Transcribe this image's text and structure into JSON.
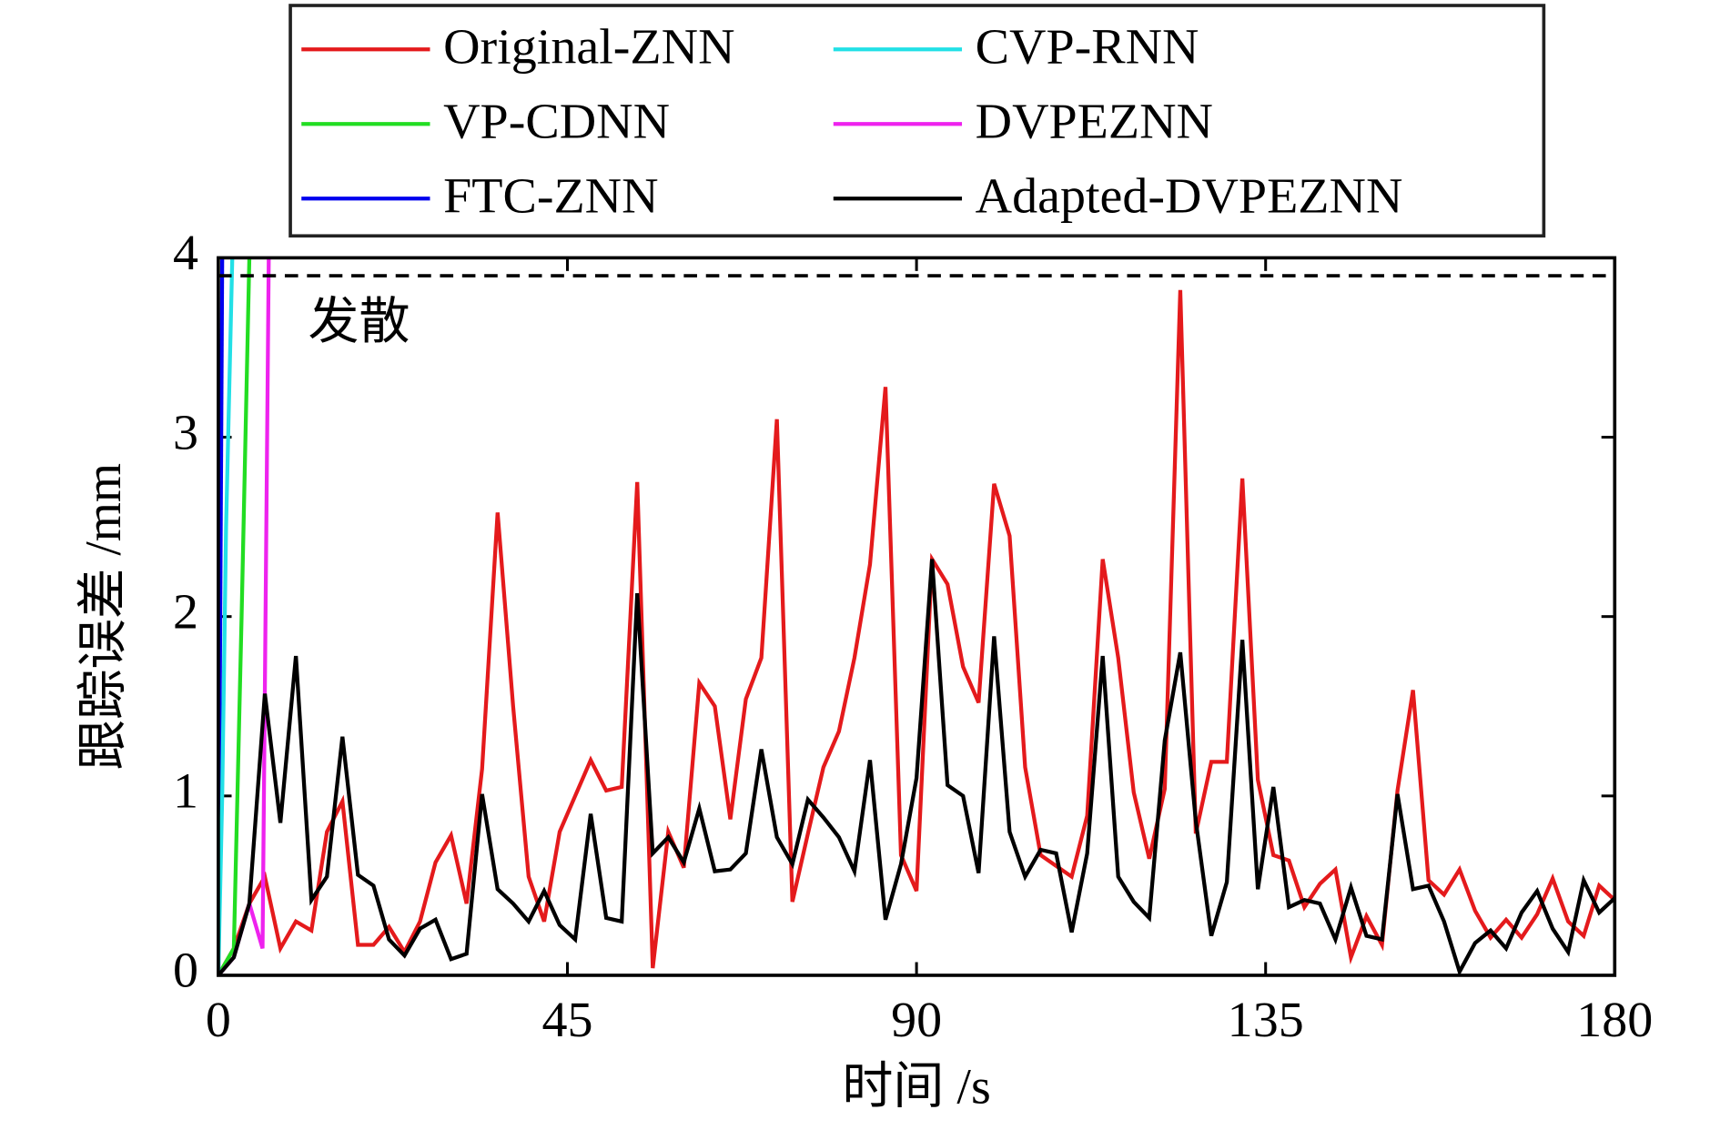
{
  "chart_data": {
    "type": "line",
    "x_label": "时间 /s",
    "y_label": "跟踪误差 /mm",
    "annotation": "发散",
    "dashed_line_y": 3.9,
    "xlim": [
      0,
      180
    ],
    "ylim": [
      0,
      4
    ],
    "xticks": [
      0,
      45,
      90,
      135,
      180
    ],
    "yticks": [
      0,
      1,
      2,
      3,
      4
    ],
    "legend": "top",
    "series": [
      {
        "name": "Original-ZNN",
        "color": "#e41a1c",
        "x": [
          0,
          2,
          4,
          6,
          8,
          10,
          12,
          14,
          16,
          18,
          20,
          22,
          24,
          26,
          28,
          30,
          32,
          34,
          36,
          38,
          40,
          42,
          44,
          46,
          48,
          50,
          52,
          54,
          56,
          58,
          60,
          62,
          64,
          66,
          68,
          70,
          72,
          74,
          76,
          78,
          80,
          82,
          84,
          86,
          88,
          90,
          92,
          94,
          96,
          98,
          100,
          102,
          104,
          106,
          108,
          110,
          112,
          114,
          116,
          118,
          120,
          122,
          124,
          126,
          128,
          130,
          132,
          134,
          136,
          138,
          140,
          142,
          144,
          146,
          148,
          150,
          152,
          154,
          156,
          158,
          160,
          162,
          164,
          166,
          168,
          170,
          172,
          174,
          176,
          178,
          180
        ],
        "values": [
          0,
          0.15,
          0.4,
          0.55,
          0.15,
          0.3,
          0.25,
          0.8,
          0.97,
          0.17,
          0.17,
          0.27,
          0.13,
          0.3,
          0.63,
          0.78,
          0.4,
          1.15,
          2.58,
          1.5,
          0.55,
          0.3,
          0.8,
          1.0,
          1.2,
          1.03,
          1.05,
          2.75,
          0.04,
          0.8,
          0.6,
          1.63,
          1.5,
          0.87,
          1.54,
          1.77,
          3.1,
          0.41,
          0.79,
          1.16,
          1.36,
          1.77,
          2.29,
          3.28,
          0.67,
          0.47,
          2.32,
          2.18,
          1.72,
          1.52,
          2.74,
          2.45,
          1.16,
          0.67,
          0.61,
          0.55,
          0.89,
          2.32,
          1.77,
          1.02,
          0.65,
          1.04,
          3.82,
          0.79,
          1.19,
          1.19,
          2.77,
          1.09,
          0.67,
          0.64,
          0.38,
          0.51,
          0.59,
          0.1,
          0.33,
          0.17,
          1.03,
          1.59,
          0.53,
          0.45,
          0.59,
          0.36,
          0.21,
          0.31,
          0.21,
          0.34,
          0.54,
          0.3,
          0.22,
          0.5,
          0.42
        ]
      },
      {
        "name": "VP-CDNN",
        "color": "#22dd22",
        "x": [
          0,
          2,
          3,
          4
        ],
        "values": [
          0,
          0.15,
          2,
          4
        ]
      },
      {
        "name": "FTC-ZNN",
        "color": "#0000ee",
        "x": [
          0,
          0.5
        ],
        "values": [
          0,
          4
        ]
      },
      {
        "name": "CVP-RNN",
        "color": "#22e0e6",
        "x": [
          0,
          0.5,
          1,
          1.8
        ],
        "values": [
          0,
          1,
          2.5,
          4
        ]
      },
      {
        "name": "DVPEZNN",
        "color": "#ee22ee",
        "x": [
          0,
          2,
          4,
          5.7,
          6.5
        ],
        "values": [
          0,
          0.1,
          0.4,
          0.15,
          4
        ]
      },
      {
        "name": "Adapted-DVPEZNN",
        "color": "#000000",
        "x": [
          0,
          2,
          4,
          6,
          8,
          10,
          12,
          14,
          16,
          18,
          20,
          22,
          24,
          26,
          28,
          30,
          32,
          34,
          36,
          38,
          40,
          42,
          44,
          46,
          48,
          50,
          52,
          54,
          56,
          58,
          60,
          62,
          64,
          66,
          68,
          70,
          72,
          74,
          76,
          78,
          80,
          82,
          84,
          86,
          88,
          90,
          92,
          94,
          96,
          98,
          100,
          102,
          104,
          106,
          108,
          110,
          112,
          114,
          116,
          118,
          120,
          122,
          124,
          126,
          128,
          130,
          132,
          134,
          136,
          138,
          140,
          142,
          144,
          146,
          148,
          150,
          152,
          154,
          156,
          158,
          160,
          162,
          164,
          166,
          168,
          170,
          172,
          174,
          176,
          178,
          180
        ],
        "values": [
          0,
          0.1,
          0.4,
          1.57,
          0.85,
          1.78,
          0.42,
          0.55,
          1.33,
          0.56,
          0.5,
          0.2,
          0.11,
          0.26,
          0.31,
          0.09,
          0.12,
          1.01,
          0.48,
          0.4,
          0.3,
          0.47,
          0.28,
          0.2,
          0.9,
          0.32,
          0.3,
          2.13,
          0.68,
          0.77,
          0.63,
          0.93,
          0.58,
          0.59,
          0.68,
          1.26,
          0.77,
          0.62,
          0.98,
          0.88,
          0.77,
          0.58,
          1.2,
          0.31,
          0.62,
          1.1,
          2.32,
          1.06,
          1.0,
          0.57,
          1.89,
          0.8,
          0.55,
          0.7,
          0.68,
          0.24,
          0.68,
          1.78,
          0.55,
          0.41,
          0.32,
          1.31,
          1.8,
          0.86,
          0.22,
          0.52,
          1.87,
          0.48,
          1.05,
          0.38,
          0.42,
          0.4,
          0.2,
          0.49,
          0.22,
          0.2,
          1.01,
          0.48,
          0.5,
          0.3,
          0.02,
          0.18,
          0.25,
          0.15,
          0.35,
          0.47,
          0.26,
          0.13,
          0.53,
          0.35,
          0.43
        ]
      }
    ]
  }
}
